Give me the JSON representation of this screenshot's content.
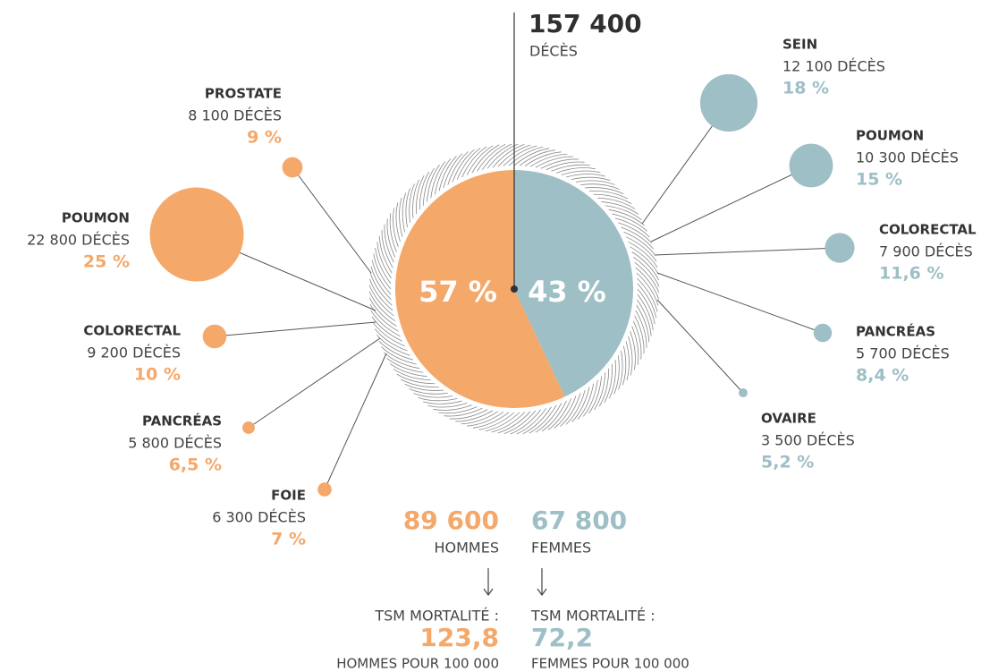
{
  "chart_data": {
    "type": "pie",
    "total": "157 400",
    "total_label": "DÉCÈS",
    "series": [
      {
        "name": "HOMMES",
        "color": "#f4a86a",
        "value": 57,
        "value_label": "57 %",
        "total": "89 600",
        "rate_label": "TSM MORTALITÉ :",
        "rate": "123,8",
        "rate_unit": "HOMMES POUR 100 000",
        "categories": [
          "PROSTATE",
          "POUMON",
          "COLORECTAL",
          "PANCRÉAS",
          "FOIE"
        ],
        "deaths": [
          "8 100 DÉCÈS",
          "22 800 DÉCÈS",
          "9 200 DÉCÈS",
          "5 800 DÉCÈS",
          "6 300 DÉCÈS"
        ],
        "values": [
          9,
          25,
          10,
          6.5,
          7
        ],
        "value_labels": [
          "9 %",
          "25 %",
          "10 %",
          "6,5 %",
          "7 %"
        ]
      },
      {
        "name": "FEMMES",
        "color": "#9dbfc5",
        "value": 43,
        "value_label": "43 %",
        "total": "67 800",
        "rate_label": "TSM MORTALITÉ :",
        "rate": "72,2",
        "rate_unit": "FEMMES POUR 100 000",
        "categories": [
          "SEIN",
          "POUMON",
          "COLORECTAL",
          "PANCRÉAS",
          "OVAIRE"
        ],
        "deaths": [
          "12 100 DÉCÈS",
          "10 300 DÉCÈS",
          "7 900 DÉCÈS",
          "5 700 DÉCÈS",
          "3 500 DÉCÈS"
        ],
        "values": [
          18,
          15,
          11.6,
          8.4,
          5.2
        ],
        "value_labels": [
          "18 %",
          "15 %",
          "11,6 %",
          "8,4 %",
          "5,2 %"
        ]
      }
    ]
  }
}
